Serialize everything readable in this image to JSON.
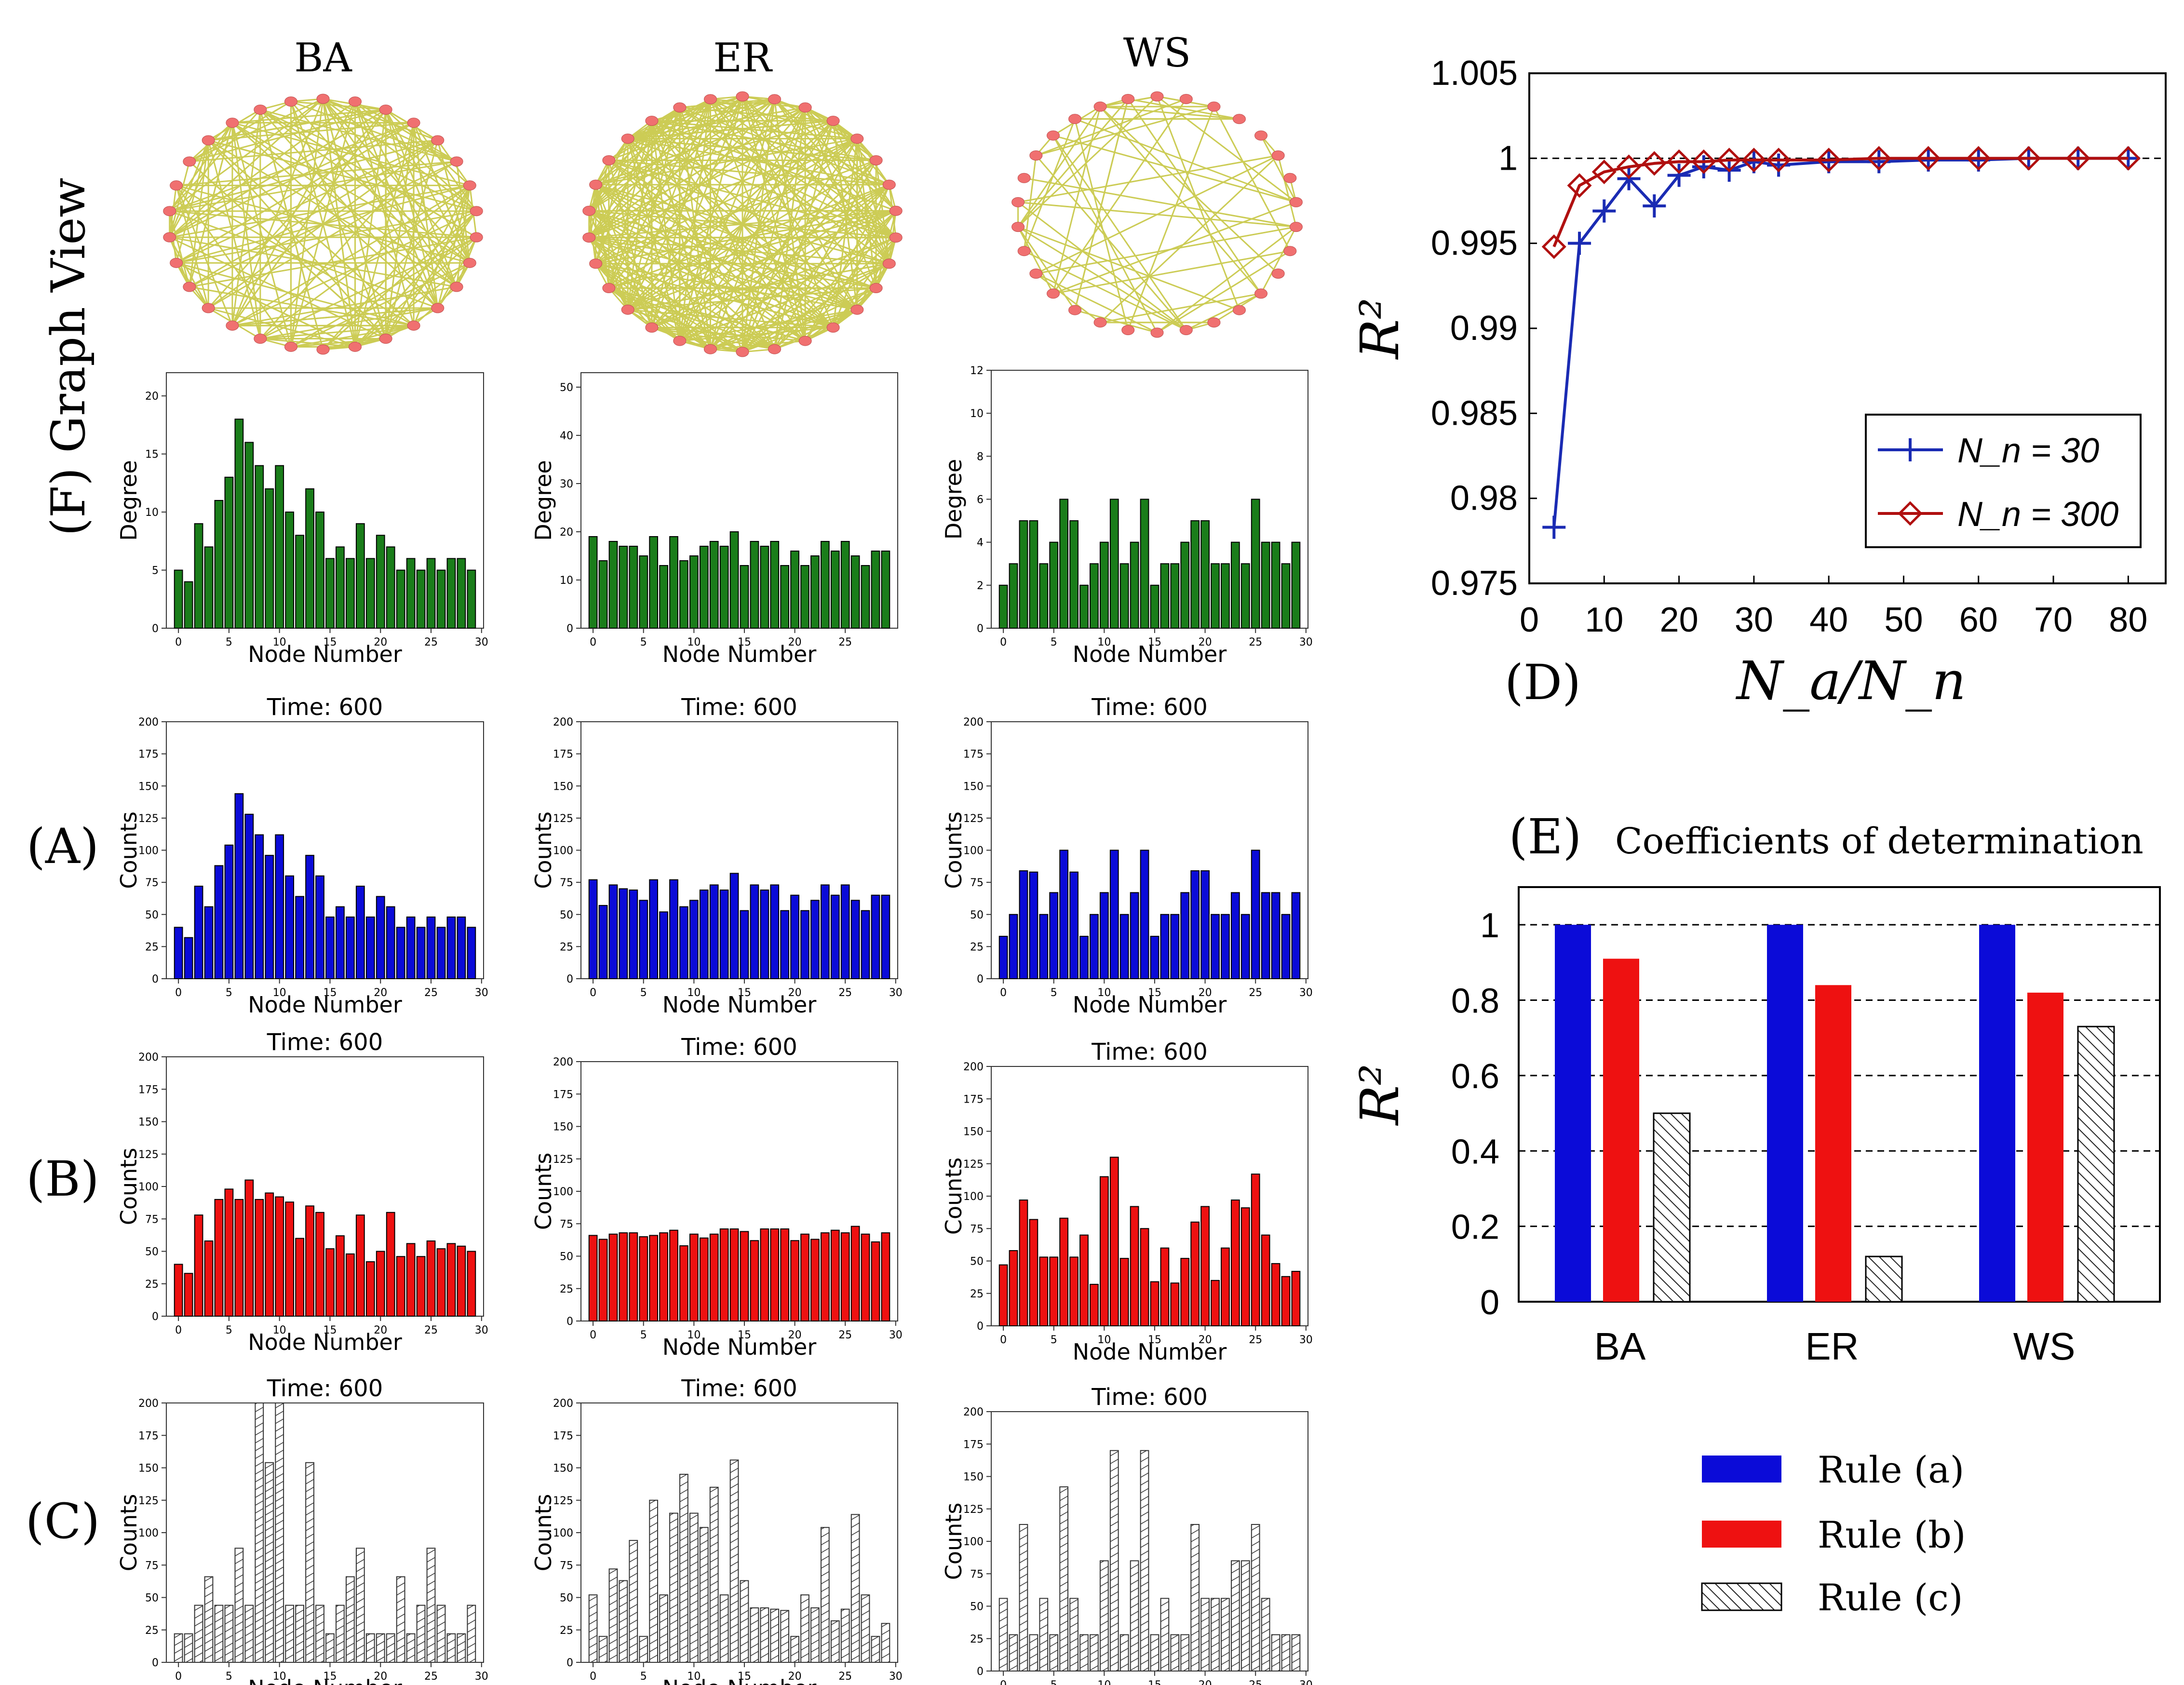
{
  "colors": {
    "blue": "#0b0bd8",
    "red": "#ee1111",
    "green": "#1a7d1a",
    "edge": "#cccc55",
    "node": "#f07070",
    "hatch": "#444444",
    "lineBlue": "#1a2bb3",
    "lineRed": "#b01010"
  },
  "network_titles": [
    "BA",
    "ER",
    "WS"
  ],
  "row_labels": {
    "F": "(F) Graph View",
    "A": "(A)",
    "B": "(B)",
    "C": "(C)",
    "D": "(D)",
    "E": "(E)"
  },
  "panel_e_title": "Coefficients of determination",
  "chart_data": [
    {
      "id": "BA-degree",
      "type": "bar",
      "title": "",
      "xlabel": "Node Number",
      "ylabel": "Degree",
      "ylim": [
        0,
        22
      ],
      "yticks": [
        0,
        5,
        10,
        15,
        20
      ],
      "xticks": [
        0,
        5,
        10,
        15,
        20,
        25,
        30
      ],
      "values": [
        5,
        4,
        9,
        7,
        11,
        13,
        18,
        16,
        14,
        12,
        14,
        10,
        8,
        12,
        10,
        6,
        7,
        6,
        9,
        6,
        8,
        7,
        5,
        6,
        5,
        6,
        5,
        6,
        6,
        5
      ]
    },
    {
      "id": "ER-degree",
      "type": "bar",
      "title": "",
      "xlabel": "Node Number",
      "ylabel": "Degree",
      "ylim": [
        0,
        53
      ],
      "yticks": [
        0,
        10,
        20,
        30,
        40,
        50
      ],
      "xticks": [
        0,
        5,
        10,
        15,
        20,
        25
      ],
      "values": [
        19,
        14,
        18,
        17,
        17,
        15,
        19,
        13,
        19,
        14,
        15,
        17,
        18,
        17,
        20,
        13,
        18,
        17,
        18,
        13,
        16,
        13,
        15,
        18,
        16,
        18,
        15,
        13,
        16,
        16
      ]
    },
    {
      "id": "WS-degree",
      "type": "bar",
      "title": "",
      "xlabel": "Node Number",
      "ylabel": "Degree",
      "ylim": [
        0,
        12
      ],
      "yticks": [
        0,
        2,
        4,
        6,
        8,
        10,
        12
      ],
      "xticks": [
        0,
        5,
        10,
        15,
        20,
        25,
        30
      ],
      "values": [
        2,
        3,
        5,
        5,
        3,
        4,
        6,
        5,
        2,
        3,
        4,
        6,
        3,
        4,
        6,
        2,
        3,
        3,
        4,
        5,
        5,
        3,
        3,
        4,
        3,
        6,
        4,
        4,
        3,
        4
      ]
    },
    {
      "id": "BA-A",
      "type": "bar",
      "title": "Time: 600",
      "xlabel": "Node Number",
      "ylabel": "Counts",
      "ylim": [
        0,
        200
      ],
      "yticks": [
        0,
        25,
        50,
        75,
        100,
        125,
        150,
        175,
        200
      ],
      "xticks": [
        0,
        5,
        10,
        15,
        20,
        25,
        30
      ],
      "values": [
        40,
        32,
        72,
        56,
        88,
        104,
        144,
        128,
        112,
        96,
        112,
        80,
        64,
        96,
        80,
        48,
        56,
        48,
        72,
        48,
        64,
        56,
        40,
        48,
        40,
        48,
        40,
        48,
        48,
        40
      ]
    },
    {
      "id": "ER-A",
      "type": "bar",
      "title": "Time: 600",
      "xlabel": "Node Number",
      "ylabel": "Counts",
      "ylim": [
        0,
        200
      ],
      "yticks": [
        0,
        25,
        50,
        75,
        100,
        125,
        150,
        175,
        200
      ],
      "xticks": [
        0,
        5,
        10,
        15,
        20,
        25,
        30
      ],
      "values": [
        77,
        57,
        73,
        70,
        69,
        61,
        77,
        52,
        77,
        56,
        61,
        69,
        73,
        69,
        82,
        53,
        73,
        69,
        73,
        53,
        65,
        53,
        61,
        73,
        65,
        73,
        61,
        53,
        65,
        65
      ]
    },
    {
      "id": "WS-A",
      "type": "bar",
      "title": "Time: 600",
      "xlabel": "Node Number",
      "ylabel": "Counts",
      "ylim": [
        0,
        200
      ],
      "yticks": [
        0,
        25,
        50,
        75,
        100,
        125,
        150,
        175,
        200
      ],
      "xticks": [
        0,
        5,
        10,
        15,
        20,
        25,
        30
      ],
      "values": [
        33,
        50,
        84,
        83,
        50,
        67,
        100,
        83,
        33,
        50,
        67,
        100,
        50,
        67,
        100,
        33,
        50,
        50,
        67,
        84,
        84,
        50,
        50,
        67,
        50,
        100,
        67,
        67,
        50,
        67
      ]
    },
    {
      "id": "BA-B",
      "type": "bar",
      "title": "Time: 600",
      "xlabel": "Node Number",
      "ylabel": "Counts",
      "ylim": [
        0,
        200
      ],
      "yticks": [
        0,
        25,
        50,
        75,
        100,
        125,
        150,
        175,
        200
      ],
      "xticks": [
        0,
        5,
        10,
        15,
        20,
        25,
        30
      ],
      "values": [
        40,
        33,
        78,
        58,
        90,
        98,
        90,
        105,
        90,
        95,
        92,
        88,
        60,
        85,
        80,
        52,
        62,
        48,
        78,
        42,
        50,
        80,
        46,
        56,
        46,
        58,
        52,
        56,
        54,
        50
      ]
    },
    {
      "id": "ER-B",
      "type": "bar",
      "title": "Time: 600",
      "xlabel": "Node Number",
      "ylabel": "Counts",
      "ylim": [
        0,
        200
      ],
      "yticks": [
        0,
        25,
        50,
        75,
        100,
        125,
        150,
        175,
        200
      ],
      "xticks": [
        0,
        5,
        10,
        15,
        20,
        25,
        30
      ],
      "values": [
        66,
        63,
        67,
        68,
        68,
        65,
        66,
        68,
        70,
        58,
        67,
        64,
        67,
        71,
        71,
        69,
        62,
        71,
        71,
        71,
        62,
        67,
        63,
        68,
        70,
        68,
        73,
        67,
        61,
        68
      ]
    },
    {
      "id": "WS-B",
      "type": "bar",
      "title": "Time: 600",
      "xlabel": "Node Number",
      "ylabel": "Counts",
      "ylim": [
        0,
        200
      ],
      "yticks": [
        0,
        25,
        50,
        75,
        100,
        125,
        150,
        175,
        200
      ],
      "xticks": [
        0,
        5,
        10,
        15,
        20,
        25,
        30
      ],
      "values": [
        47,
        58,
        97,
        82,
        53,
        53,
        83,
        53,
        70,
        32,
        115,
        130,
        52,
        92,
        75,
        34,
        60,
        33,
        52,
        80,
        92,
        35,
        60,
        97,
        91,
        117,
        70,
        48,
        38,
        42
      ]
    },
    {
      "id": "BA-C",
      "type": "bar",
      "title": "Time: 600",
      "xlabel": "Node Number",
      "ylabel": "Counts",
      "ylim": [
        0,
        200
      ],
      "yticks": [
        0,
        25,
        50,
        75,
        100,
        125,
        150,
        175,
        200
      ],
      "xticks": [
        0,
        5,
        10,
        15,
        20,
        25,
        30
      ],
      "hatched": true,
      "values": [
        22,
        22,
        44,
        66,
        44,
        44,
        88,
        44,
        200,
        154,
        200,
        44,
        44,
        154,
        44,
        22,
        44,
        66,
        88,
        22,
        22,
        22,
        66,
        22,
        44,
        88,
        44,
        22,
        22,
        44
      ]
    },
    {
      "id": "ER-C",
      "type": "bar",
      "title": "Time: 600",
      "xlabel": "Node Number",
      "ylabel": "Counts",
      "ylim": [
        0,
        200
      ],
      "yticks": [
        0,
        25,
        50,
        75,
        100,
        125,
        150,
        175,
        200
      ],
      "xticks": [
        0,
        5,
        10,
        15,
        20,
        25,
        30
      ],
      "hatched": true,
      "values": [
        52,
        20,
        72,
        63,
        94,
        20,
        125,
        52,
        115,
        145,
        115,
        104,
        135,
        52,
        156,
        63,
        42,
        42,
        41,
        40,
        20,
        52,
        42,
        104,
        32,
        41,
        114,
        52,
        20,
        30
      ]
    },
    {
      "id": "WS-C",
      "type": "bar",
      "title": "Time: 600",
      "xlabel": "Node Number",
      "ylabel": "Counts",
      "ylim": [
        0,
        200
      ],
      "yticks": [
        0,
        25,
        50,
        75,
        100,
        125,
        150,
        175,
        200
      ],
      "xticks": [
        0,
        5,
        10,
        15,
        20,
        25,
        30
      ],
      "hatched": true,
      "values": [
        56,
        28,
        113,
        28,
        56,
        28,
        142,
        56,
        28,
        28,
        85,
        170,
        28,
        85,
        170,
        28,
        56,
        28,
        28,
        113,
        56,
        56,
        56,
        85,
        85,
        113,
        56,
        28,
        28,
        28
      ]
    },
    {
      "id": "D",
      "type": "line",
      "title": "",
      "xlabel": "N_a/N_n",
      "ylabel": "R²",
      "xlim": [
        0,
        85
      ],
      "ylim": [
        0.975,
        1.005
      ],
      "xticks": [
        0,
        10,
        20,
        30,
        40,
        50,
        60,
        70,
        80
      ],
      "xtick_labels": [
        "0",
        "10",
        "20",
        "30",
        "40",
        "50",
        "60",
        "70",
        "80"
      ],
      "yticks": [
        0.975,
        0.98,
        0.985,
        0.99,
        0.995,
        1,
        1.005
      ],
      "ytick_labels": [
        "0.975",
        "0.98",
        "0.985",
        "0.99",
        "0.995",
        "1",
        "1.005"
      ],
      "reference_line": 1,
      "legend": [
        "N_n = 30",
        "N_n = 300"
      ],
      "series": [
        {
          "name": "N_n = 30",
          "marker": "plus",
          "color": "#1a2bb3",
          "x": [
            3.3,
            6.7,
            10,
            13.3,
            16.7,
            20,
            23.3,
            26.7,
            30,
            33.3,
            40,
            46.7,
            53.3,
            60,
            66.7,
            73.3,
            80
          ],
          "y": [
            0.9783,
            0.995,
            0.9969,
            0.9988,
            0.9972,
            0.999,
            0.9995,
            0.9993,
            0.9998,
            0.9996,
            0.9998,
            0.9998,
            0.9999,
            0.9999,
            1.0,
            1.0,
            1.0
          ]
        },
        {
          "name": "N_n = 300",
          "marker": "diamond",
          "color": "#b01010",
          "x": [
            3.3,
            6.7,
            10,
            13.3,
            16.7,
            20,
            23.3,
            26.7,
            30,
            33.3,
            40,
            46.7,
            53.3,
            60,
            66.7,
            73.3,
            80
          ],
          "y": [
            0.9948,
            0.9984,
            0.9992,
            0.9995,
            0.9997,
            0.9998,
            0.9998,
            0.9999,
            0.9999,
            0.9999,
            0.9999,
            1.0,
            1.0,
            1.0,
            1.0,
            1.0,
            1.0
          ]
        }
      ]
    },
    {
      "id": "E",
      "type": "bar",
      "title": "Coefficients of determination",
      "ylabel": "R²",
      "ylim": [
        0,
        1.1
      ],
      "yticks": [
        0,
        0.2,
        0.4,
        0.6,
        0.8,
        1
      ],
      "ytick_labels": [
        "0",
        "0.2",
        "0.4",
        "0.6",
        "0.8",
        "1"
      ],
      "categories": [
        "BA",
        "ER",
        "WS"
      ],
      "series": [
        {
          "name": "Rule (a)",
          "values": [
            1.0,
            1.0,
            1.0
          ]
        },
        {
          "name": "Rule (b)",
          "values": [
            0.91,
            0.84,
            0.82
          ]
        },
        {
          "name": "Rule (c)",
          "values": [
            0.5,
            0.12,
            0.73
          ]
        }
      ]
    }
  ]
}
